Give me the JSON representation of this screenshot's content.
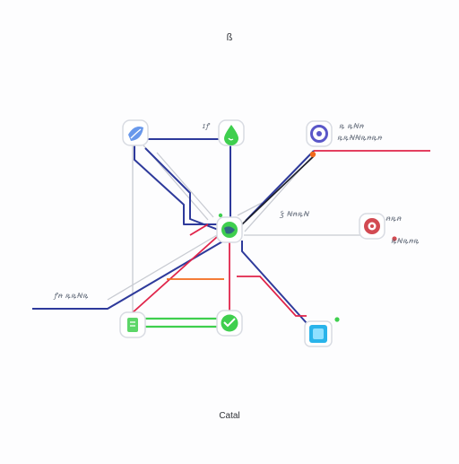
{
  "diagram": {
    "title": "ß",
    "caption": "Catal",
    "labels": {
      "top_center": "ɪꝭ",
      "top_right": "ꝶ ꝶꞤꞥ",
      "top_right_2": "ꝶꝶꞤꞤꝶꞥꝶꞥ",
      "center_right": "Ꝣ ꞤꞥꝶꞤ",
      "right_node_a": "ꞥꝶꞥ",
      "right_node_b": "ꝶꞤꝶꞥꝶ",
      "left_line": "ꝭꞥ ꝶꝶꞤꝶ"
    },
    "colors": {
      "navy": "#2e3a9b",
      "red": "#e0244a",
      "green": "#3fcf4e",
      "orange": "#f26a1b",
      "gray": "#c8cbd2",
      "node_blue": "#4e86e8",
      "node_purple": "#5a57c8",
      "node_red": "#d24a52",
      "node_cyan": "#29b4ea"
    },
    "icons": {
      "top_left": "leaf-icon",
      "top_center": "drop-icon",
      "top_right": "pin-icon",
      "hub": "globe-icon",
      "right": "target-icon",
      "bottom_left": "doc-icon",
      "bottom_center": "heart-icon",
      "bottom_right": "square-icon"
    }
  }
}
